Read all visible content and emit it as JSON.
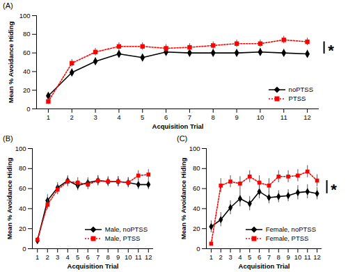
{
  "chart_data": [
    {
      "type": "line",
      "title": "(A)",
      "x_label": "Acquisition Trial",
      "y_label": "Mean % Avoidance Hiding",
      "x": [
        1,
        2,
        3,
        4,
        5,
        6,
        7,
        8,
        9,
        10,
        11,
        12
      ],
      "xlim": [
        0.5,
        12.5
      ],
      "xticks": [
        1,
        2,
        3,
        4,
        5,
        6,
        7,
        8,
        9,
        10,
        11,
        12
      ],
      "ylim": [
        0,
        100
      ],
      "yticks": [
        0,
        20,
        40,
        60,
        80,
        100
      ],
      "legend": "lower right",
      "annotation": "*",
      "series": [
        {
          "name": "noPTSS",
          "color": "#000000",
          "marker": "diamond",
          "line_style": "solid",
          "values": [
            14,
            39,
            51,
            59,
            55,
            61,
            60,
            60,
            60,
            61,
            60,
            59
          ],
          "errors": [
            3,
            4,
            4,
            4,
            4,
            4,
            4,
            4,
            4,
            4,
            4,
            4
          ]
        },
        {
          "name": "PTSS",
          "color": "#ff0000",
          "marker": "square",
          "line_style": "dotted",
          "values": [
            8,
            49,
            61,
            67,
            67,
            65,
            66,
            68,
            70,
            70,
            74,
            72
          ],
          "errors": [
            3,
            4,
            4,
            4,
            4,
            4,
            4,
            4,
            4,
            4,
            4,
            4
          ]
        }
      ]
    },
    {
      "type": "line",
      "title": "(B)",
      "x_label": "Acquisition Trial",
      "y_label": "Mean % Avoidance Hiding",
      "x": [
        1,
        2,
        3,
        4,
        5,
        6,
        7,
        8,
        9,
        10,
        11,
        12
      ],
      "xlim": [
        0.5,
        12.5
      ],
      "xticks": [
        1,
        2,
        3,
        4,
        5,
        6,
        7,
        8,
        9,
        10,
        11,
        12
      ],
      "ylim": [
        0,
        100
      ],
      "yticks": [
        0,
        20,
        40,
        60,
        80,
        100
      ],
      "legend": "lower right",
      "series": [
        {
          "name": "Male, noPTSS",
          "color": "#000000",
          "marker": "diamond",
          "line_style": "solid",
          "values": [
            8,
            48,
            61,
            68,
            63,
            66,
            68,
            67,
            67,
            66,
            64,
            64
          ],
          "errors": [
            2,
            6,
            5,
            5,
            5,
            5,
            5,
            5,
            5,
            5,
            5,
            5
          ]
        },
        {
          "name": "Male, PTSS",
          "color": "#ff0000",
          "marker": "square",
          "line_style": "dotted",
          "values": [
            9,
            44,
            59,
            67,
            66,
            64,
            68,
            67,
            67,
            66,
            73,
            74
          ],
          "errors": [
            2,
            5,
            5,
            5,
            5,
            5,
            5,
            4,
            5,
            5,
            5,
            5
          ]
        }
      ]
    },
    {
      "type": "line",
      "title": "(C)",
      "x_label": "Acquisition Trial",
      "y_label": "Mean % Avoidance Hiding",
      "x": [
        1,
        2,
        3,
        4,
        5,
        6,
        7,
        8,
        9,
        10,
        11,
        12
      ],
      "xlim": [
        0.5,
        12.5
      ],
      "xticks": [
        1,
        2,
        3,
        4,
        5,
        6,
        7,
        8,
        9,
        10,
        11,
        12
      ],
      "ylim": [
        0,
        100
      ],
      "yticks": [
        0,
        20,
        40,
        60,
        80,
        100
      ],
      "legend": "lower right",
      "annotation": "*",
      "series": [
        {
          "name": "Female, noPTSS",
          "color": "#000000",
          "marker": "diamond",
          "line_style": "solid",
          "values": [
            22,
            29,
            41,
            50,
            45,
            57,
            51,
            52,
            53,
            56,
            57,
            55
          ],
          "errors": [
            6,
            7,
            7,
            8,
            7,
            7,
            6,
            6,
            6,
            7,
            7,
            6
          ]
        },
        {
          "name": "Female, PTSS",
          "color": "#ff0000",
          "marker": "square",
          "line_style": "dotted",
          "values": [
            5,
            63,
            67,
            65,
            72,
            66,
            63,
            72,
            72,
            73,
            77,
            68
          ],
          "errors": [
            2,
            7,
            6,
            7,
            6,
            7,
            7,
            6,
            6,
            6,
            6,
            6
          ]
        }
      ]
    }
  ]
}
